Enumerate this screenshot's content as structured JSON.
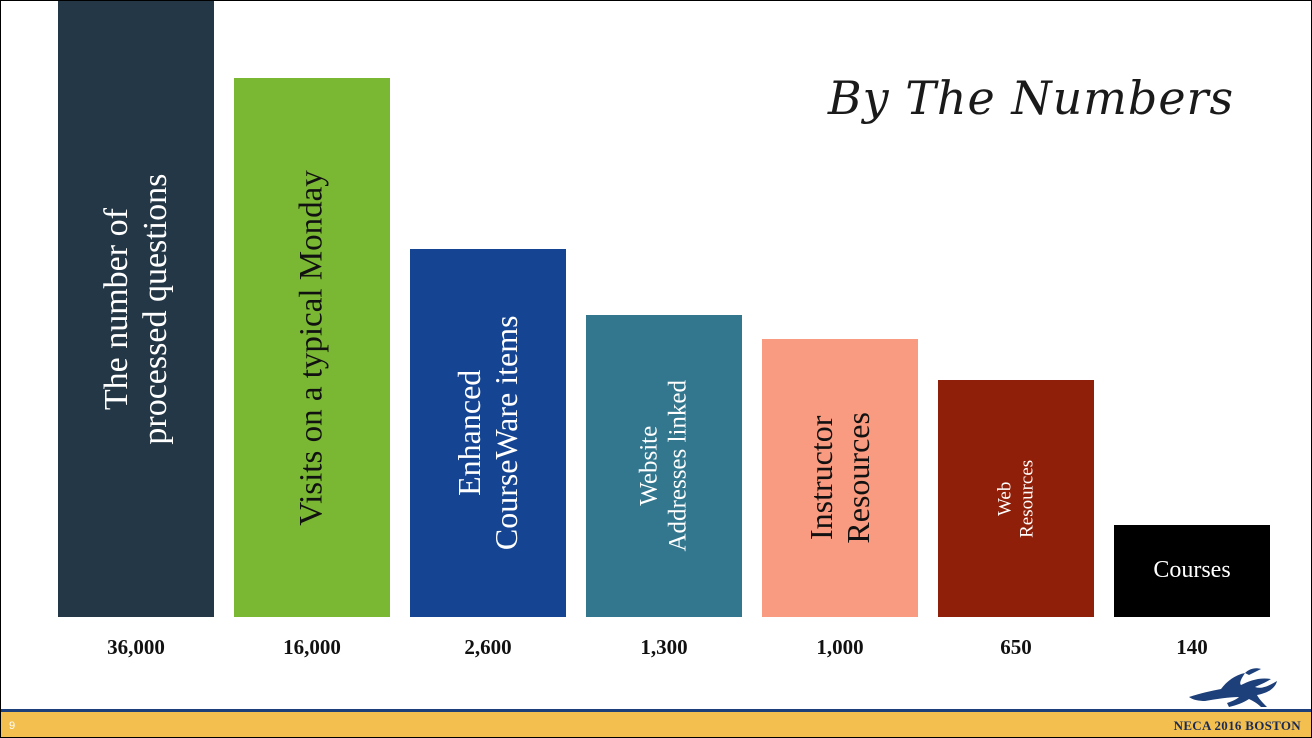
{
  "slide": {
    "title": "By The Numbers",
    "page_number": "9",
    "footer_text": "NECA 2016 BOSTON"
  },
  "chart_data": {
    "type": "bar",
    "title": "By The Numbers",
    "categories": [
      "The number of processed questions",
      "Visits on a typical Monday",
      "Enhanced CourseWare items",
      "Website Addresses linked",
      "Instructor Resources",
      "Web Resources",
      "Courses"
    ],
    "value_labels": [
      "36,000",
      "16,000",
      "2,600",
      "1,300",
      "1,000",
      "650",
      "140"
    ],
    "values": [
      36000,
      16000,
      2600,
      1300,
      1000,
      650,
      140
    ],
    "bars": [
      {
        "label": "The number of\nprocessed questions",
        "display": "36,000",
        "color": "#243746",
        "text_color": "#ffffff",
        "font_size": 34,
        "orientation": "vertical"
      },
      {
        "label": "Visits on a typical Monday",
        "display": "16,000",
        "color": "#7ab733",
        "text_color": "#111111",
        "font_size": 33,
        "orientation": "vertical"
      },
      {
        "label": "Enhanced\nCourseWare items",
        "display": "2,600",
        "color": "#154592",
        "text_color": "#ffffff",
        "font_size": 32,
        "orientation": "vertical"
      },
      {
        "label": "Website\nAddresses linked",
        "display": "1,300",
        "color": "#33778f",
        "text_color": "#ffffff",
        "font_size": 25,
        "orientation": "vertical"
      },
      {
        "label": "Instructor\nResources",
        "display": "1,000",
        "color": "#f99b80",
        "text_color": "#111111",
        "font_size": 32,
        "orientation": "vertical"
      },
      {
        "label": "Web\nResources",
        "display": "650",
        "color": "#8f1f08",
        "text_color": "#ffffff",
        "font_size": 19,
        "orientation": "vertical"
      },
      {
        "label": "Courses",
        "display": "140",
        "color": "#000000",
        "text_color": "#ffffff",
        "font_size": 24,
        "orientation": "horizontal"
      }
    ],
    "xlabel": "",
    "ylabel": "",
    "note": ""
  }
}
